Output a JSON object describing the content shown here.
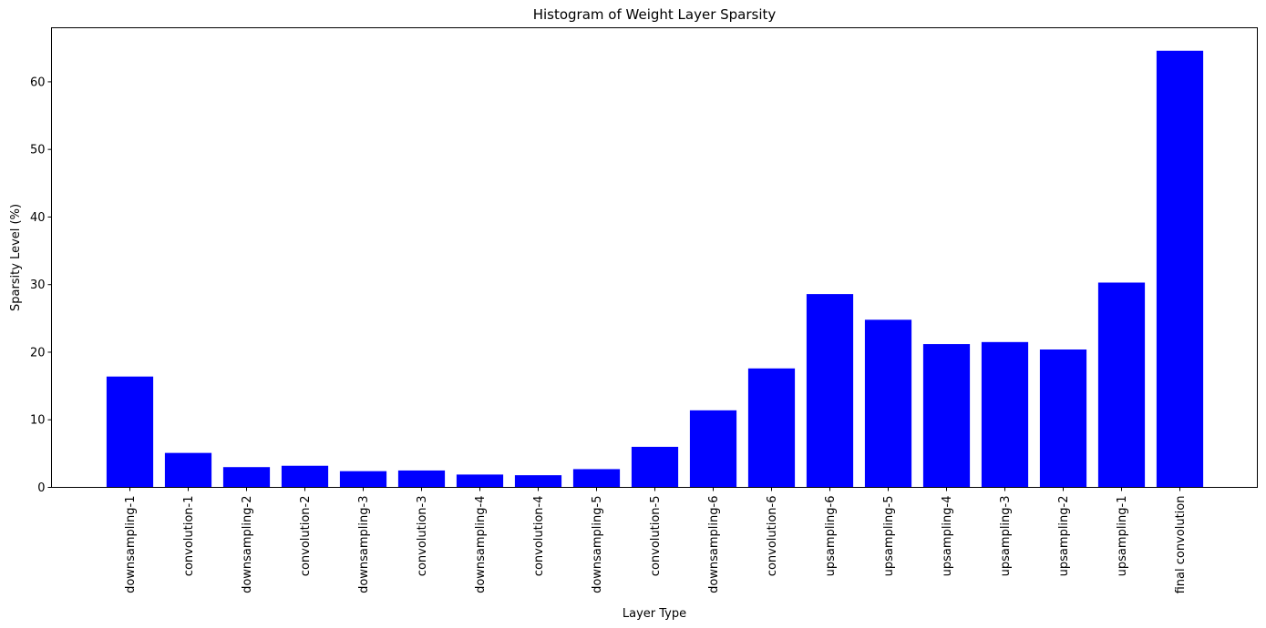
{
  "chart_data": {
    "type": "bar",
    "title": "Histogram of Weight Layer Sparsity",
    "xlabel": "Layer Type",
    "ylabel": "Sparsity Level (%)",
    "ylim": [
      0,
      68
    ],
    "yticks": [
      0,
      10,
      20,
      30,
      40,
      50,
      60
    ],
    "grid": false,
    "bar_color": "#0000ff",
    "categories": [
      "downsampling-1",
      "convolution-1",
      "downsampling-2",
      "convolution-2",
      "downsampling-3",
      "convolution-3",
      "downsampling-4",
      "convolution-4",
      "downsampling-5",
      "convolution-5",
      "downsampling-6",
      "convolution-6",
      "upsampling-6",
      "upsampling-5",
      "upsampling-4",
      "upsampling-3",
      "upsampling-2",
      "upsampling-1",
      "final convolution"
    ],
    "values": [
      16.4,
      5.1,
      3.0,
      3.2,
      2.4,
      2.5,
      1.9,
      1.8,
      2.7,
      6.0,
      11.4,
      17.6,
      28.6,
      24.8,
      21.2,
      21.5,
      20.4,
      30.3,
      64.6
    ]
  }
}
